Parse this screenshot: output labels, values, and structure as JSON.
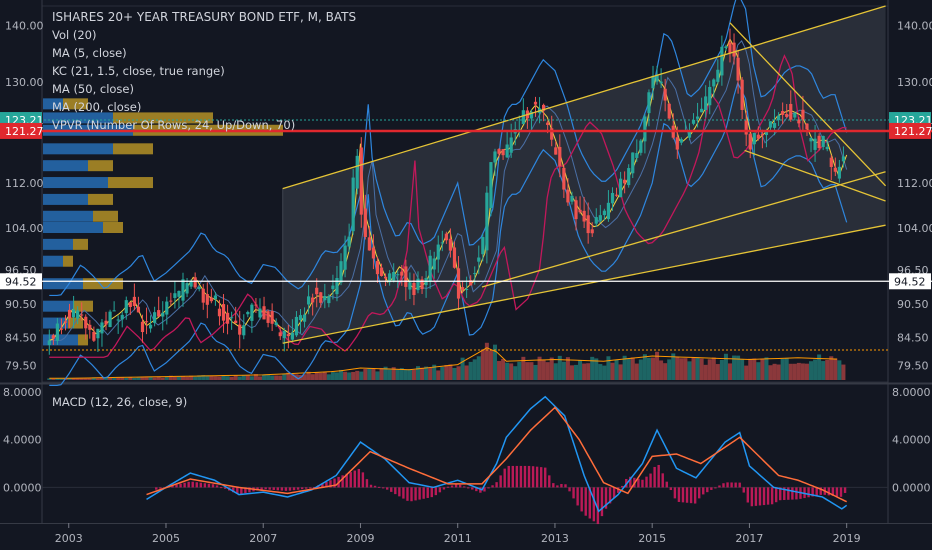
{
  "chart_data": {
    "type": "candlestick",
    "title": "ISHARES 20+ YEAR TREASURY BOND ETF, M, BATS",
    "indicators": [
      "Vol (20)",
      "MA (5, close)",
      "KC (21, 1.5, close, true range)",
      "MA (50, close)",
      "MA (200, close)",
      "VPVR (Number Of Rows, 24, Up/Down, 70)"
    ],
    "macd_label": "MACD (12, 26, close, 9)",
    "price_axis": {
      "ticks": [
        140.0,
        130.0,
        121.27,
        112.0,
        104.0,
        96.5,
        90.5,
        84.5,
        79.5
      ],
      "tick_labels": [
        "140.00",
        "130.00",
        "121.27",
        "112.00",
        "104.00",
        "96.50",
        "90.50",
        "84.50",
        "79.50"
      ],
      "ylim": [
        76.6,
        143.5
      ]
    },
    "macd_axis": {
      "tick_labels": [
        "8.0000",
        "4.0000",
        "0.0000"
      ],
      "ticks": [
        8,
        4,
        0
      ],
      "ylim": [
        -2.9,
        8.5
      ]
    },
    "price_labels": [
      {
        "value": 123.21,
        "text": "123.21",
        "color": "#26a69a"
      },
      {
        "value": 121.27,
        "text": "121.27",
        "color": "#e0282e"
      },
      {
        "value": 94.52,
        "text": "94.52",
        "color": "#ffffff"
      }
    ],
    "x_axis": {
      "tick_labels": [
        "2003",
        "2005",
        "2007",
        "2009",
        "2011",
        "2013",
        "2015",
        "2017",
        "2019"
      ],
      "ticks": [
        2003,
        2005,
        2007,
        2009,
        2011,
        2013,
        2015,
        2017,
        2019
      ],
      "xlim": [
        2002.45,
        2019.85
      ]
    },
    "close_series": [
      [
        2002.58,
        84.0
      ],
      [
        2002.75,
        86.0
      ],
      [
        2003.0,
        89.5
      ],
      [
        2003.25,
        87.5
      ],
      [
        2003.5,
        85.0
      ],
      [
        2003.75,
        87.5
      ],
      [
        2004.0,
        89.0
      ],
      [
        2004.25,
        91.5
      ],
      [
        2004.5,
        86.5
      ],
      [
        2004.75,
        88.0
      ],
      [
        2005.0,
        90.0
      ],
      [
        2005.25,
        92.0
      ],
      [
        2005.5,
        95.5
      ],
      [
        2005.75,
        92.0
      ],
      [
        2006.0,
        91.0
      ],
      [
        2006.25,
        87.5
      ],
      [
        2006.5,
        86.0
      ],
      [
        2006.75,
        89.5
      ],
      [
        2007.0,
        89.0
      ],
      [
        2007.25,
        86.5
      ],
      [
        2007.5,
        85.0
      ],
      [
        2007.75,
        88.0
      ],
      [
        2008.0,
        92.0
      ],
      [
        2008.25,
        91.5
      ],
      [
        2008.5,
        94.0
      ],
      [
        2008.75,
        102.0
      ],
      [
        2008.92,
        119.0
      ],
      [
        2009.0,
        107.0
      ],
      [
        2009.25,
        99.0
      ],
      [
        2009.5,
        94.0
      ],
      [
        2009.75,
        97.5
      ],
      [
        2010.0,
        93.0
      ],
      [
        2010.25,
        94.0
      ],
      [
        2010.5,
        99.0
      ],
      [
        2010.75,
        104.0
      ],
      [
        2011.0,
        92.5
      ],
      [
        2011.25,
        94.5
      ],
      [
        2011.5,
        100.0
      ],
      [
        2011.67,
        115.0
      ],
      [
        2011.83,
        118.0
      ],
      [
        2012.0,
        118.0
      ],
      [
        2012.25,
        122.0
      ],
      [
        2012.5,
        126.0
      ],
      [
        2012.75,
        124.0
      ],
      [
        2013.0,
        118.0
      ],
      [
        2013.25,
        110.0
      ],
      [
        2013.5,
        106.0
      ],
      [
        2013.75,
        104.0
      ],
      [
        2014.0,
        106.0
      ],
      [
        2014.25,
        110.0
      ],
      [
        2014.5,
        114.0
      ],
      [
        2014.75,
        120.0
      ],
      [
        2015.0,
        131.0
      ],
      [
        2015.17,
        129.0
      ],
      [
        2015.5,
        119.0
      ],
      [
        2015.75,
        121.0
      ],
      [
        2016.0,
        125.0
      ],
      [
        2016.25,
        129.0
      ],
      [
        2016.5,
        138.0
      ],
      [
        2016.67,
        135.0
      ],
      [
        2016.83,
        125.0
      ],
      [
        2017.0,
        119.0
      ],
      [
        2017.25,
        121.0
      ],
      [
        2017.5,
        124.0
      ],
      [
        2017.75,
        125.0
      ],
      [
        2018.0,
        124.0
      ],
      [
        2018.25,
        119.0
      ],
      [
        2018.5,
        120.0
      ],
      [
        2018.75,
        113.0
      ],
      [
        2018.92,
        117.0
      ],
      [
        2019.0,
        123.21
      ]
    ],
    "volume_series": [
      [
        2003.0,
        0.05
      ],
      [
        2005.0,
        0.1
      ],
      [
        2007.0,
        0.15
      ],
      [
        2008.5,
        0.25
      ],
      [
        2009.0,
        0.35
      ],
      [
        2010.0,
        0.3
      ],
      [
        2011.0,
        0.45
      ],
      [
        2011.67,
        1.0
      ],
      [
        2012.0,
        0.55
      ],
      [
        2013.0,
        0.6
      ],
      [
        2014.0,
        0.55
      ],
      [
        2015.0,
        0.7
      ],
      [
        2016.0,
        0.65
      ],
      [
        2017.0,
        0.6
      ],
      [
        2018.0,
        0.65
      ],
      [
        2019.0,
        0.6
      ]
    ],
    "macd_series": [
      [
        2004.6,
        -1.0
      ],
      [
        2005.0,
        0.0
      ],
      [
        2005.5,
        1.2
      ],
      [
        2006.0,
        0.6
      ],
      [
        2006.5,
        -0.6
      ],
      [
        2007.0,
        -0.4
      ],
      [
        2007.5,
        -0.8
      ],
      [
        2008.0,
        -0.2
      ],
      [
        2008.5,
        1.0
      ],
      [
        2009.0,
        3.8
      ],
      [
        2009.5,
        2.4
      ],
      [
        2010.0,
        0.4
      ],
      [
        2010.5,
        0.0
      ],
      [
        2011.0,
        0.6
      ],
      [
        2011.5,
        -0.2
      ],
      [
        2011.8,
        2.0
      ],
      [
        2012.0,
        4.2
      ],
      [
        2012.5,
        6.6
      ],
      [
        2012.8,
        7.6
      ],
      [
        2013.2,
        6.0
      ],
      [
        2013.6,
        1.0
      ],
      [
        2013.9,
        -2.0
      ],
      [
        2014.3,
        -0.6
      ],
      [
        2014.8,
        2.0
      ],
      [
        2015.1,
        4.8
      ],
      [
        2015.5,
        1.6
      ],
      [
        2015.9,
        0.8
      ],
      [
        2016.5,
        3.8
      ],
      [
        2016.8,
        4.6
      ],
      [
        2017.0,
        1.8
      ],
      [
        2017.5,
        0.0
      ],
      [
        2018.0,
        -0.4
      ],
      [
        2018.5,
        -0.8
      ],
      [
        2018.9,
        -1.8
      ],
      [
        2019.0,
        -1.5
      ]
    ],
    "signal_series": [
      [
        2004.6,
        -0.6
      ],
      [
        2005.5,
        0.7
      ],
      [
        2006.5,
        0.0
      ],
      [
        2007.5,
        -0.5
      ],
      [
        2008.5,
        0.2
      ],
      [
        2009.2,
        3.0
      ],
      [
        2010.0,
        1.6
      ],
      [
        2010.8,
        0.3
      ],
      [
        2011.5,
        0.3
      ],
      [
        2012.0,
        2.4
      ],
      [
        2012.5,
        4.8
      ],
      [
        2013.0,
        6.7
      ],
      [
        2013.5,
        4.0
      ],
      [
        2014.0,
        0.4
      ],
      [
        2014.5,
        -0.5
      ],
      [
        2015.0,
        2.6
      ],
      [
        2015.5,
        2.8
      ],
      [
        2016.0,
        2.0
      ],
      [
        2016.8,
        4.2
      ],
      [
        2017.2,
        2.6
      ],
      [
        2017.6,
        1.0
      ],
      [
        2018.0,
        0.6
      ],
      [
        2018.5,
        -0.2
      ],
      [
        2019.0,
        -1.2
      ]
    ],
    "colors": {
      "background": "#131722",
      "up": "#26a69a",
      "down": "#ef5350",
      "channel_line": "#e5c436",
      "ma5": "#f5d33d",
      "keltner": "#2e86de",
      "ma50": "#c2185b",
      "macd_line": "#2196f3",
      "signal_line": "#ff6d3a",
      "histogram": "#d81b60",
      "vpvr_up": "#2979c8",
      "vpvr_down": "#c9a227"
    },
    "grid": false
  }
}
